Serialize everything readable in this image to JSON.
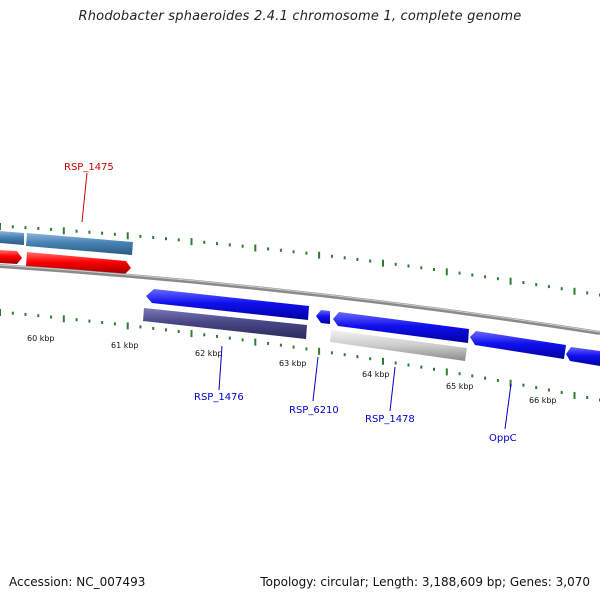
{
  "title": "Rhodobacter sphaeroides 2.4.1 chromosome 1, complete genome",
  "footer": {
    "accession": "Accession: NC_007493",
    "summary": "Topology: circular; Length: 3,188,609 bp; Genes: 3,070"
  },
  "kbp_labels": [
    "60 kbp",
    "61 kbp",
    "62 kbp",
    "63 kbp",
    "64 kbp",
    "65 kbp",
    "66 kbp"
  ],
  "gene_labels": [
    {
      "text": "RSP_1475",
      "color": "#cc0000"
    },
    {
      "text": "RSP_1476",
      "color": "#0000cc"
    },
    {
      "text": "RSP_6210",
      "color": "#0000cc"
    },
    {
      "text": "RSP_1478",
      "color": "#0000cc"
    },
    {
      "text": "OppC",
      "color": "#0000cc"
    }
  ],
  "colors": {
    "backbone": "#808080",
    "ticks": "#2e7d32",
    "forward_gene": "#1a1aee",
    "reverse_gene": "#ee1111",
    "steel_feature": "#4682b4",
    "purple_feature": "#4b4b8f",
    "grey_feature": "#c0c0c0"
  }
}
